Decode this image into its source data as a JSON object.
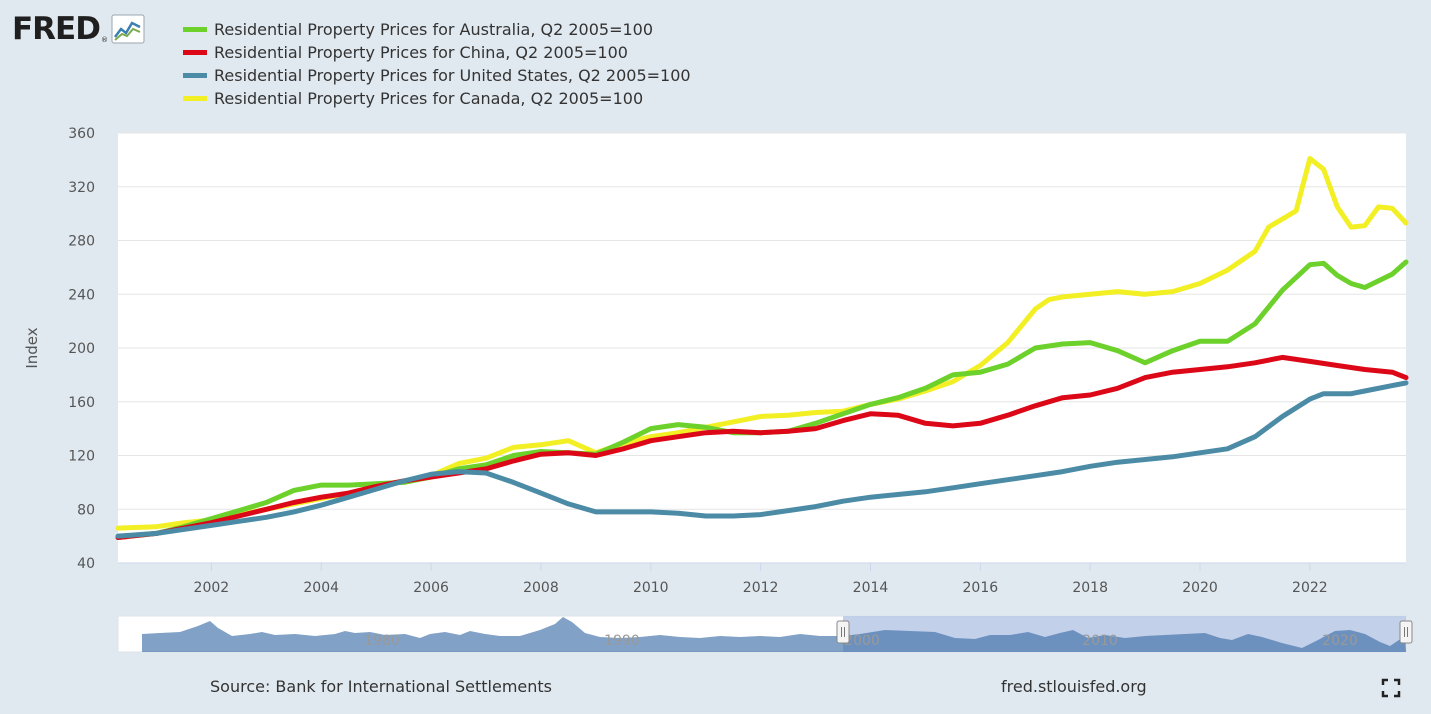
{
  "header": {
    "logo_text": "FRED",
    "logo_reg": "®"
  },
  "legend": [
    {
      "label": "Residential Property Prices for Australia, Q2 2005=100",
      "color": "#6cd12a"
    },
    {
      "label": "Residential Property Prices for China, Q2 2005=100",
      "color": "#dc0817"
    },
    {
      "label": "Residential Property Prices for United States, Q2 2005=100",
      "color": "#4b8ba6"
    },
    {
      "label": "Residential Property Prices for Canada, Q2 2005=100",
      "color": "#f2ef24"
    }
  ],
  "footer": {
    "source": "Source: Bank for International Settlements",
    "site": "fred.stlouisfed.org"
  },
  "chart_data": {
    "type": "line",
    "title": "",
    "xlabel": "",
    "ylabel": "Index",
    "xlim": [
      2000.3,
      2023.75
    ],
    "ylim": [
      40,
      360
    ],
    "yticks": [
      40,
      80,
      120,
      160,
      200,
      240,
      280,
      320,
      360
    ],
    "xticks": [
      2002,
      2004,
      2006,
      2008,
      2010,
      2012,
      2014,
      2016,
      2018,
      2020,
      2022
    ],
    "navigator_labels": [
      "1980",
      "1990",
      "2000",
      "2010",
      "2020"
    ],
    "grid": true,
    "series": [
      {
        "name": "Residential Property Prices for Canada, Q2 2005=100",
        "color": "#f2ef24",
        "x": [
          2000.3,
          2001.0,
          2001.5,
          2002.0,
          2002.5,
          2003.0,
          2003.5,
          2004.0,
          2004.5,
          2005.0,
          2005.5,
          2006.0,
          2006.5,
          2007.0,
          2007.5,
          2008.0,
          2008.5,
          2009.0,
          2009.5,
          2010.0,
          2010.5,
          2011.0,
          2011.5,
          2012.0,
          2012.5,
          2013.0,
          2013.5,
          2014.0,
          2014.5,
          2015.0,
          2015.5,
          2016.0,
          2016.5,
          2017.0,
          2017.25,
          2017.5,
          2018.0,
          2018.5,
          2019.0,
          2019.5,
          2020.0,
          2020.5,
          2021.0,
          2021.25,
          2021.75,
          2022.0,
          2022.25,
          2022.5,
          2022.75,
          2023.0,
          2023.25,
          2023.5,
          2023.75
        ],
        "values": [
          66,
          67,
          70,
          72,
          76,
          80,
          84,
          88,
          92,
          97,
          101,
          105,
          114,
          118,
          126,
          128,
          131,
          122,
          129,
          134,
          137,
          141,
          145,
          149,
          150,
          152,
          153,
          158,
          162,
          168,
          175,
          187,
          204,
          229,
          236,
          238,
          240,
          242,
          240,
          242,
          248,
          258,
          272,
          290,
          302,
          341,
          333,
          305,
          290,
          291,
          305,
          304,
          293
        ]
      },
      {
        "name": "Residential Property Prices for Australia, Q2 2005=100",
        "color": "#6cd12a",
        "x": [
          2000.3,
          2001.0,
          2001.5,
          2002.0,
          2002.5,
          2003.0,
          2003.5,
          2004.0,
          2004.5,
          2005.0,
          2005.5,
          2006.0,
          2006.5,
          2007.0,
          2007.5,
          2008.0,
          2008.5,
          2009.0,
          2009.5,
          2010.0,
          2010.5,
          2011.0,
          2011.5,
          2012.0,
          2012.5,
          2013.0,
          2013.5,
          2014.0,
          2014.5,
          2015.0,
          2015.5,
          2016.0,
          2016.5,
          2017.0,
          2017.5,
          2018.0,
          2018.5,
          2019.0,
          2019.5,
          2020.0,
          2020.5,
          2021.0,
          2021.5,
          2022.0,
          2022.25,
          2022.5,
          2022.75,
          2023.0,
          2023.5,
          2023.75
        ],
        "values": [
          59,
          62,
          67,
          73,
          79,
          85,
          94,
          98,
          98,
          99,
          100,
          104,
          110,
          113,
          120,
          123,
          122,
          121,
          130,
          140,
          143,
          141,
          137,
          137,
          138,
          144,
          151,
          158,
          163,
          170,
          180,
          182,
          188,
          200,
          203,
          204,
          198,
          189,
          198,
          205,
          205,
          218,
          243,
          262,
          263,
          254,
          248,
          245,
          255,
          264
        ]
      },
      {
        "name": "Residential Property Prices for China, Q2 2005=100",
        "color": "#dc0817",
        "x": [
          2000.3,
          2001.0,
          2001.5,
          2002.0,
          2002.5,
          2003.0,
          2003.5,
          2004.0,
          2004.5,
          2005.0,
          2005.5,
          2006.0,
          2006.5,
          2007.0,
          2007.5,
          2008.0,
          2008.5,
          2009.0,
          2009.5,
          2010.0,
          2010.5,
          2011.0,
          2011.5,
          2012.0,
          2012.5,
          2013.0,
          2013.5,
          2014.0,
          2014.5,
          2015.0,
          2015.5,
          2016.0,
          2016.5,
          2017.0,
          2017.5,
          2018.0,
          2018.5,
          2019.0,
          2019.5,
          2020.0,
          2020.5,
          2021.0,
          2021.5,
          2022.0,
          2022.5,
          2023.0,
          2023.5,
          2023.75
        ],
        "values": [
          59,
          62,
          66,
          70,
          75,
          80,
          85,
          89,
          92,
          97,
          101,
          104,
          107,
          110,
          116,
          121,
          122,
          120,
          125,
          131,
          134,
          137,
          138,
          137,
          138,
          140,
          146,
          151,
          150,
          144,
          142,
          144,
          150,
          157,
          163,
          165,
          170,
          178,
          182,
          184,
          186,
          189,
          193,
          190,
          187,
          184,
          182,
          178
        ]
      },
      {
        "name": "Residential Property Prices for United States, Q2 2005=100",
        "color": "#4b8ba6",
        "x": [
          2000.3,
          2001.0,
          2001.5,
          2002.0,
          2002.5,
          2003.0,
          2003.5,
          2004.0,
          2004.5,
          2005.0,
          2005.5,
          2006.0,
          2006.5,
          2007.0,
          2007.5,
          2008.0,
          2008.5,
          2009.0,
          2009.5,
          2010.0,
          2010.5,
          2011.0,
          2011.5,
          2012.0,
          2012.5,
          2013.0,
          2013.5,
          2014.0,
          2014.5,
          2015.0,
          2015.5,
          2016.0,
          2016.5,
          2017.0,
          2017.5,
          2018.0,
          2018.5,
          2019.0,
          2019.5,
          2020.0,
          2020.5,
          2021.0,
          2021.5,
          2022.0,
          2022.25,
          2022.5,
          2022.75,
          2023.0,
          2023.5,
          2023.75
        ],
        "values": [
          60,
          62,
          65,
          68,
          71,
          74,
          78,
          83,
          89,
          95,
          101,
          106,
          108,
          107,
          100,
          92,
          84,
          78,
          78,
          78,
          77,
          75,
          75,
          76,
          79,
          82,
          86,
          89,
          91,
          93,
          96,
          99,
          102,
          105,
          108,
          112,
          115,
          117,
          119,
          122,
          125,
          134,
          149,
          162,
          166,
          166,
          166,
          168,
          172,
          174
        ]
      }
    ]
  }
}
